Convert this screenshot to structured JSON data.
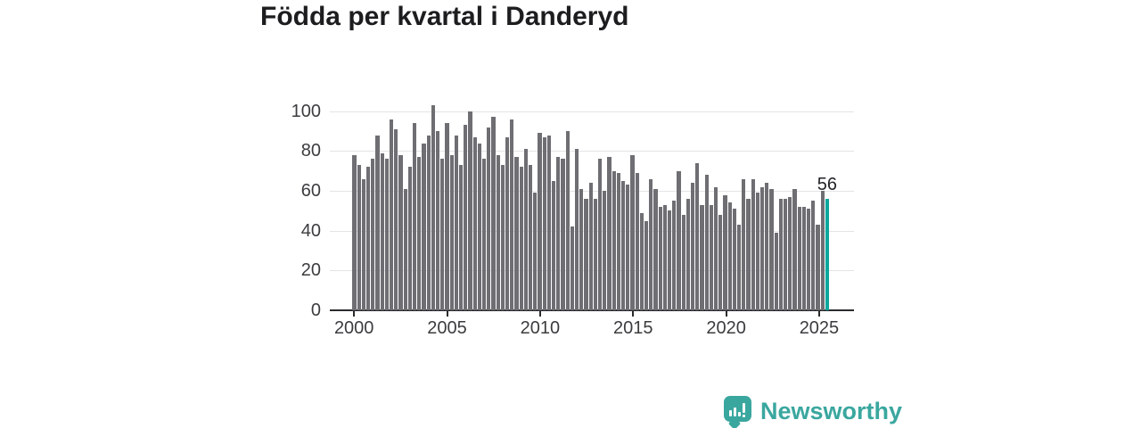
{
  "title": "Födda per kvartal i Danderyd",
  "annotation": {
    "last_value_label": "56"
  },
  "branding": {
    "name": "Newsworthy"
  },
  "colors": {
    "bar": "#6e6e73",
    "highlight": "#0ba79d",
    "grid": "#e4e4e7",
    "axis": "#2b2b2e",
    "tick_text": "#3c3c3f",
    "title_text": "#1d1d1f",
    "brand_teal": "#3aa79f"
  },
  "chart_data": {
    "type": "bar",
    "title": "Födda per kvartal i Danderyd",
    "xlabel": "",
    "ylabel": "",
    "ylim": [
      0,
      110
    ],
    "grid": "horizontal",
    "legend": "none",
    "x_tick_labels": [
      "2000",
      "2005",
      "2010",
      "2015",
      "2020",
      "2025"
    ],
    "y_ticks": [
      0,
      20,
      40,
      60,
      80,
      100
    ],
    "highlight_last_bar": true,
    "last_value_label": "56",
    "categories": [
      "2000 Q1",
      "2000 Q2",
      "2000 Q3",
      "2000 Q4",
      "2001 Q1",
      "2001 Q2",
      "2001 Q3",
      "2001 Q4",
      "2002 Q1",
      "2002 Q2",
      "2002 Q3",
      "2002 Q4",
      "2003 Q1",
      "2003 Q2",
      "2003 Q3",
      "2003 Q4",
      "2004 Q1",
      "2004 Q2",
      "2004 Q3",
      "2004 Q4",
      "2005 Q1",
      "2005 Q2",
      "2005 Q3",
      "2005 Q4",
      "2006 Q1",
      "2006 Q2",
      "2006 Q3",
      "2006 Q4",
      "2007 Q1",
      "2007 Q2",
      "2007 Q3",
      "2007 Q4",
      "2008 Q1",
      "2008 Q2",
      "2008 Q3",
      "2008 Q4",
      "2009 Q1",
      "2009 Q2",
      "2009 Q3",
      "2009 Q4",
      "2010 Q1",
      "2010 Q2",
      "2010 Q3",
      "2010 Q4",
      "2011 Q1",
      "2011 Q2",
      "2011 Q3",
      "2011 Q4",
      "2012 Q1",
      "2012 Q2",
      "2012 Q3",
      "2012 Q4",
      "2013 Q1",
      "2013 Q2",
      "2013 Q3",
      "2013 Q4",
      "2014 Q1",
      "2014 Q2",
      "2014 Q3",
      "2014 Q4",
      "2015 Q1",
      "2015 Q2",
      "2015 Q3",
      "2015 Q4",
      "2016 Q1",
      "2016 Q2",
      "2016 Q3",
      "2016 Q4",
      "2017 Q1",
      "2017 Q2",
      "2017 Q3",
      "2017 Q4",
      "2018 Q1",
      "2018 Q2",
      "2018 Q3",
      "2018 Q4",
      "2019 Q1",
      "2019 Q2",
      "2019 Q3",
      "2019 Q4",
      "2020 Q1",
      "2020 Q2",
      "2020 Q3",
      "2020 Q4",
      "2021 Q1",
      "2021 Q2",
      "2021 Q3",
      "2021 Q4",
      "2022 Q1",
      "2022 Q2",
      "2022 Q3",
      "2022 Q4",
      "2023 Q1",
      "2023 Q2",
      "2023 Q3",
      "2023 Q4",
      "2024 Q1",
      "2024 Q2",
      "2024 Q3",
      "2024 Q4",
      "2025 Q1",
      "2025 Q2",
      "2025 Q3"
    ],
    "values": [
      78,
      73,
      66,
      72,
      76,
      88,
      79,
      76,
      96,
      91,
      78,
      61,
      72,
      94,
      77,
      84,
      88,
      103,
      90,
      76,
      94,
      78,
      88,
      73,
      93,
      100,
      87,
      84,
      76,
      92,
      97,
      78,
      73,
      87,
      96,
      77,
      72,
      81,
      73,
      59,
      89,
      87,
      88,
      65,
      77,
      76,
      90,
      42,
      81,
      61,
      56,
      64,
      56,
      76,
      60,
      77,
      70,
      69,
      65,
      63,
      78,
      69,
      49,
      45,
      66,
      61,
      52,
      53,
      50,
      55,
      70,
      48,
      56,
      64,
      74,
      53,
      68,
      53,
      62,
      48,
      58,
      54,
      51,
      43,
      66,
      56,
      66,
      59,
      62,
      64,
      61,
      39,
      56,
      56,
      57,
      61,
      52,
      52,
      51,
      55,
      43,
      60,
      56
    ]
  }
}
